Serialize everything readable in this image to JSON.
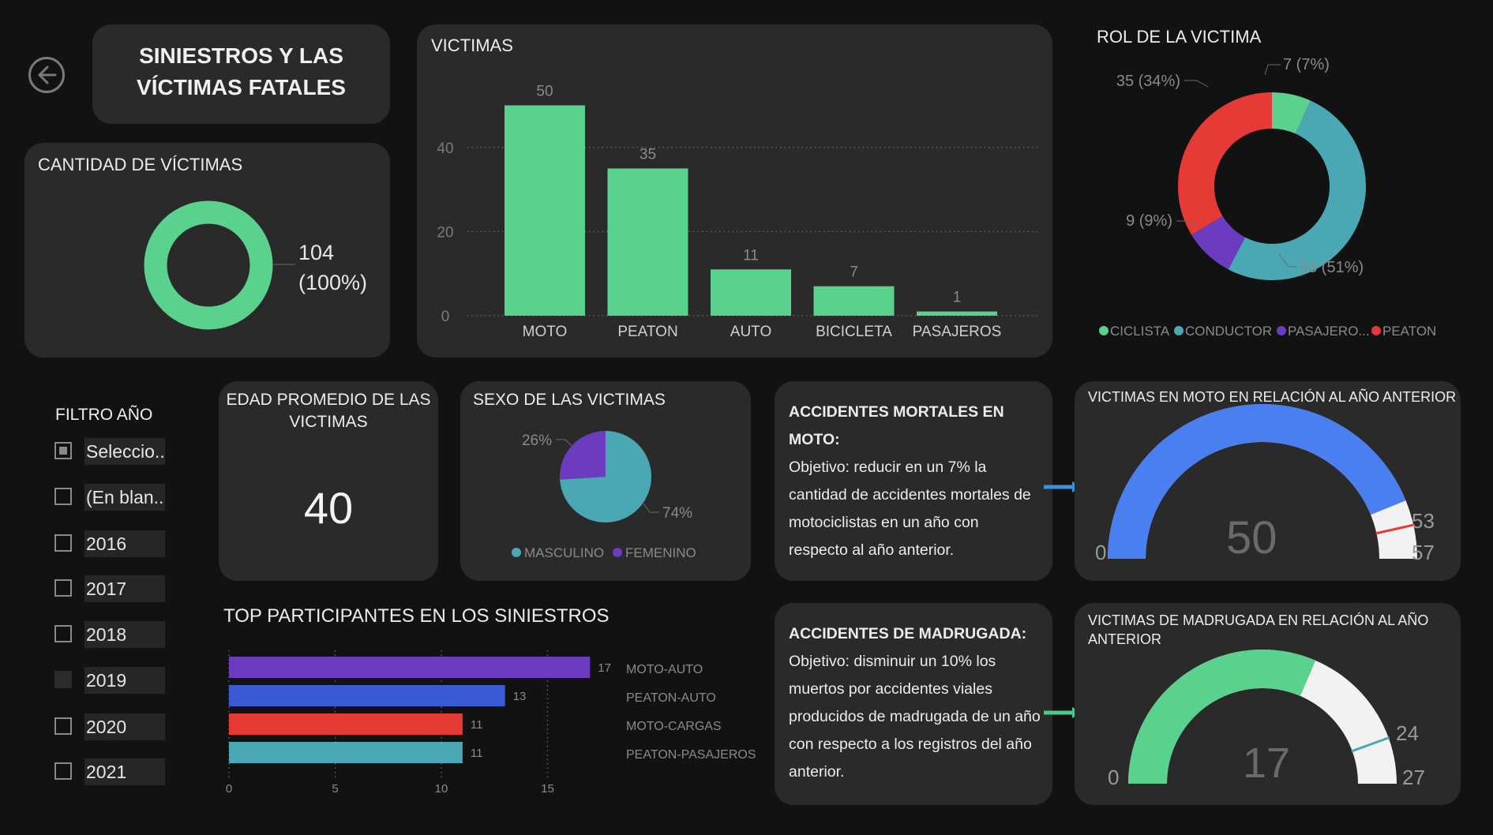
{
  "header": {
    "title": "SINIESTROS Y LAS\nVÍCTIMAS FATALES"
  },
  "colors": {
    "green": "#5ad28d",
    "teal": "#4aa8b5",
    "purple": "#6b3cc0",
    "red": "#e53a35",
    "blue": "#4a7ff2",
    "pale": "#f2f2f2"
  },
  "icons": {
    "back": "back-arrow-circle-icon"
  },
  "cantidad": {
    "title": "CANTIDAD DE VÍCTIMAS",
    "value": "104",
    "percent": "(100%)"
  },
  "chart_data": [
    {
      "type": "bar",
      "title": "VICTIMAS",
      "categories": [
        "MOTO",
        "PEATON",
        "AUTO",
        "BICICLETA",
        "PASAJEROS"
      ],
      "values": [
        50,
        35,
        11,
        7,
        1
      ],
      "ylim": [
        0,
        55
      ],
      "yticks": [
        0,
        20,
        40
      ]
    },
    {
      "type": "pie",
      "title": "ROL DE LA VICTIMA",
      "labels": [
        "CICLISTA",
        "CONDUCTOR",
        "PASAJERO...",
        "PEATON"
      ],
      "values": [
        7,
        53,
        9,
        35
      ],
      "value_labels": [
        "7 (7%)",
        "53 (51%)",
        "9 (9%)",
        "35 (34%)"
      ]
    },
    {
      "type": "pie",
      "title": "SEXO DE LAS VICTIMAS",
      "labels": [
        "MASCULINO",
        "FEMENINO"
      ],
      "values": [
        74,
        26
      ],
      "value_labels": [
        "74%",
        "26%"
      ]
    },
    {
      "type": "bar",
      "title": "TOP PARTICIPANTES EN LOS SINIESTROS",
      "categories": [
        "MOTO-AUTO",
        "PEATON-AUTO",
        "MOTO-CARGAS",
        "PEATON-PASAJEROS"
      ],
      "values": [
        17,
        13,
        11,
        11
      ],
      "xlim": [
        0,
        17
      ],
      "xticks": [
        0,
        5,
        10,
        15
      ]
    }
  ],
  "filter": {
    "title": "FILTRO AÑO",
    "items": [
      {
        "label": "Seleccio...",
        "state": "selected"
      },
      {
        "label": "(En blan...",
        "state": "unchecked"
      },
      {
        "label": "2016",
        "state": "unchecked"
      },
      {
        "label": "2017",
        "state": "unchecked"
      },
      {
        "label": "2018",
        "state": "unchecked"
      },
      {
        "label": "2019",
        "state": "blank"
      },
      {
        "label": "2020",
        "state": "unchecked"
      },
      {
        "label": "2021",
        "state": "unchecked"
      }
    ]
  },
  "edad": {
    "title": "EDAD PROMEDIO DE LAS\nVICTIMAS",
    "value": "40"
  },
  "moto_text": {
    "heading": "ACCIDENTES MORTALES EN MOTO:",
    "body": "Objetivo: reducir en un 7% la cantidad de accidentes mortales de motociclistas en un año con respecto al año anterior."
  },
  "madrugada_text": {
    "heading": "ACCIDENTES DE MADRUGADA:",
    "body": "Objetivo: disminuir un 10% los muertos por accidentes viales producidos de madrugada de un año con respecto a los registros del año anterior."
  },
  "gauge_moto": {
    "title": "VICTIMAS EN MOTO EN RELACIÓN AL AÑO ANTERIOR",
    "value": 50,
    "min": 0,
    "max": 57,
    "target": 53,
    "value_label": "50",
    "min_label": "0",
    "max_label": "57",
    "target_label": "53"
  },
  "gauge_madrugada": {
    "title": "VICTIMAS DE MADRUGADA EN RELACIÓN AL AÑO\nANTERIOR",
    "value": 17,
    "min": 0,
    "max": 27,
    "target": 24,
    "value_label": "17",
    "min_label": "0",
    "max_label": "27",
    "target_label": "24"
  }
}
